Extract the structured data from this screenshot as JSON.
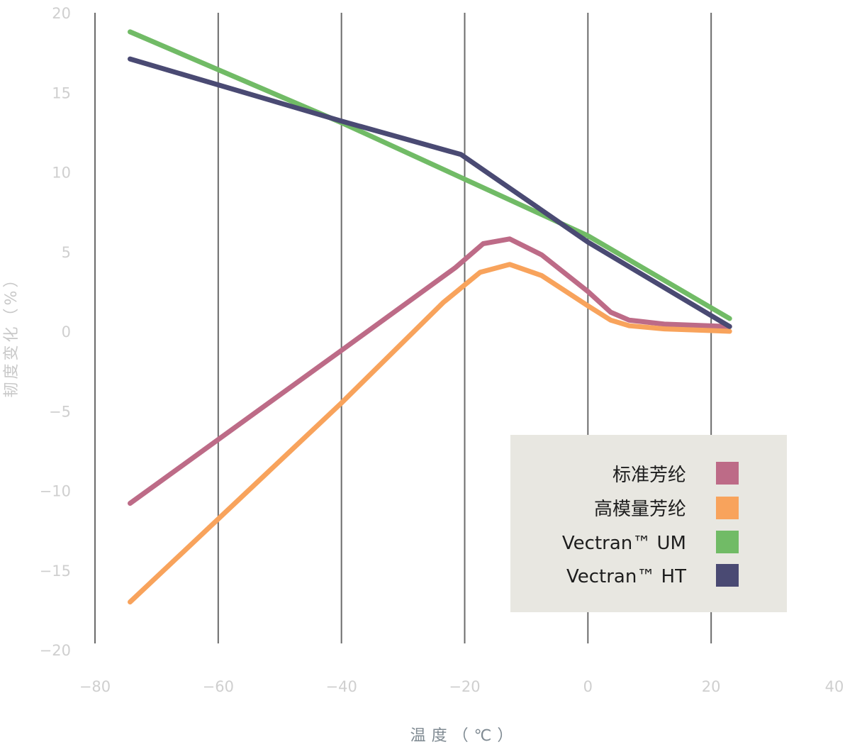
{
  "chart_data": {
    "type": "line",
    "xlabel": "温度（℃）",
    "ylabel": "韧度变化（%）",
    "xlim": [
      -80,
      40
    ],
    "ylim": [
      -20,
      20
    ],
    "x_ticks": [
      "−80",
      "−60",
      "−40",
      "−20",
      "0",
      "20",
      "40"
    ],
    "y_ticks": [
      "20",
      "15",
      "10",
      "5",
      "0",
      "−5",
      "−10",
      "−15",
      "−20"
    ],
    "grid": "vertical",
    "legend_position": "bottom-right",
    "series": [
      {
        "name": "标准芳纶",
        "color": "#bd6b87",
        "points": [
          [
            -74.3,
            -10.8
          ],
          [
            -40,
            -1.2
          ],
          [
            -21.5,
            4.0
          ],
          [
            -17,
            5.5
          ],
          [
            -12.7,
            5.8
          ],
          [
            -7.5,
            4.8
          ],
          [
            0,
            2.5
          ],
          [
            3.7,
            1.2
          ],
          [
            6.7,
            0.7
          ],
          [
            12.4,
            0.45
          ],
          [
            23,
            0.3
          ]
        ]
      },
      {
        "name": "高模量芳纶",
        "color": "#f8a35c",
        "points": [
          [
            -74.3,
            -17.0
          ],
          [
            -40,
            -4.5
          ],
          [
            -23.5,
            1.8
          ],
          [
            -17.5,
            3.7
          ],
          [
            -12.7,
            4.2
          ],
          [
            -7.5,
            3.5
          ],
          [
            0,
            1.6
          ],
          [
            3.7,
            0.7
          ],
          [
            6.7,
            0.35
          ],
          [
            12.4,
            0.15
          ],
          [
            23,
            0.0
          ]
        ]
      },
      {
        "name": "Vectran™ UM",
        "color": "#71bb66",
        "points": [
          [
            -74.3,
            18.8
          ],
          [
            -40,
            13.1
          ],
          [
            0,
            6.0
          ],
          [
            23,
            0.8
          ]
        ]
      },
      {
        "name": "Vectran™ HT",
        "color": "#4a4a73",
        "points": [
          [
            -74.3,
            17.1
          ],
          [
            -40,
            13.2
          ],
          [
            -20.6,
            11.1
          ],
          [
            0,
            5.6
          ],
          [
            23,
            0.3
          ]
        ]
      }
    ]
  },
  "legend": {
    "items": [
      {
        "label": "标准芳纶",
        "color": "#bd6b87"
      },
      {
        "label": "高模量芳纶",
        "color": "#f8a35c"
      },
      {
        "label": "Vectran™ UM",
        "color": "#71bb66"
      },
      {
        "label": "Vectran™ HT",
        "color": "#4a4a73"
      }
    ]
  }
}
